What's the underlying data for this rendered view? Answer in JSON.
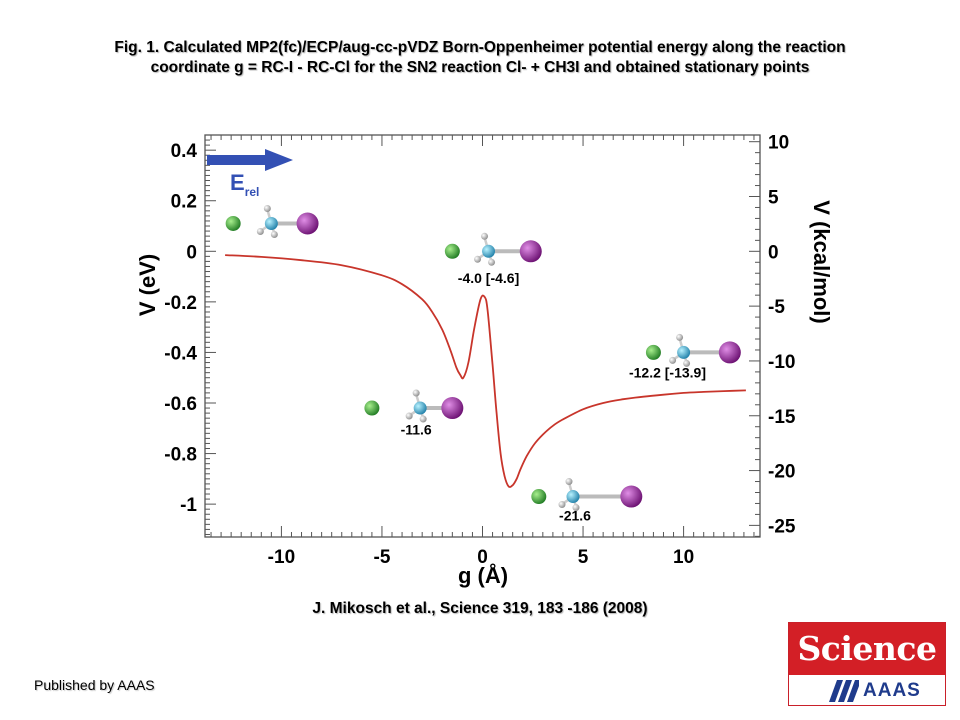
{
  "header": {
    "title_line1": "Fig. 1. Calculated MP2(fc)/ECP/aug-cc-pVDZ Born-Oppenheimer potential energy along the reaction",
    "title_line2": "coordinate g = RC-I - RC-Cl for the SN2 reaction Cl- + CH3I and obtained stationary points"
  },
  "citation": "J.  Mikosch et al.,  Science  319, 183 -186 (2008)",
  "publisher": "Published by AAAS",
  "logo": {
    "name": "Science",
    "sub": "AAAS"
  },
  "chart_data": {
    "type": "line",
    "xlabel": "g (Å)",
    "ylabel": "V (eV)",
    "y2label": "V (kcal/mol)",
    "xlim": [
      -13.8,
      13.8
    ],
    "ylim": [
      -1.13,
      0.46
    ],
    "y2lim": [
      -26.06,
      10.61
    ],
    "xticks": [
      -10,
      -5,
      0,
      5,
      10
    ],
    "xtick_labels": [
      "-10",
      "-5",
      "0",
      "5",
      "10"
    ],
    "yticks": [
      0.4,
      0.2,
      0,
      -0.2,
      -0.4,
      -0.6,
      -0.8,
      -1
    ],
    "ytick_labels": [
      "0.4",
      "0.2",
      "0",
      "-0.2",
      "-0.4",
      "-0.6",
      "-0.8",
      "-1"
    ],
    "y2ticks": [
      10,
      5,
      0,
      -5,
      -10,
      -15,
      -20,
      -25
    ],
    "y2tick_labels": [
      "10",
      "5",
      "0",
      "-5",
      "-10",
      "-15",
      "-20",
      "-25"
    ],
    "grid": false,
    "arrow_label": "E",
    "arrow_label_sub": "rel",
    "series": [
      {
        "color": "#c8352b",
        "x": [
          -12.8,
          -11,
          -9,
          -7,
          -5,
          -4,
          -3,
          -2.5,
          -2,
          -1.6,
          -1.3,
          -1.1,
          -0.95,
          -0.7,
          -0.4,
          -0.1,
          0.1,
          0.25,
          0.5,
          0.7,
          0.9,
          1.1,
          1.3,
          1.5,
          1.7,
          1.9,
          2.2,
          2.6,
          3,
          3.5,
          4,
          5,
          6,
          7,
          8,
          9,
          10,
          11,
          12,
          13.1
        ],
        "y": [
          -0.015,
          -0.022,
          -0.035,
          -0.055,
          -0.095,
          -0.13,
          -0.19,
          -0.24,
          -0.31,
          -0.39,
          -0.46,
          -0.49,
          -0.5,
          -0.44,
          -0.3,
          -0.19,
          -0.18,
          -0.23,
          -0.45,
          -0.64,
          -0.8,
          -0.89,
          -0.93,
          -0.925,
          -0.9,
          -0.86,
          -0.81,
          -0.76,
          -0.725,
          -0.69,
          -0.665,
          -0.625,
          -0.6,
          -0.585,
          -0.575,
          -0.567,
          -0.56,
          -0.556,
          -0.553,
          -0.55
        ]
      }
    ],
    "annotations": [
      {
        "label": "-4.0",
        "label2": "[-4.6]",
        "x": 0.3,
        "y": -0.125
      },
      {
        "label": "-12.2",
        "label2": "[-13.9]",
        "x": 9.2,
        "y": -0.5
      },
      {
        "label": "-11.6",
        "label2": "",
        "x": -3.3,
        "y": -0.725
      },
      {
        "label": "-21.6",
        "label2": "",
        "x": 4.6,
        "y": -1.065
      }
    ],
    "molecules": [
      {
        "name": "reactant",
        "cl": [
          -12.4,
          0.11
        ],
        "c": [
          -10.5,
          0.11
        ],
        "i": [
          -8.7,
          0.11
        ]
      },
      {
        "name": "transition-state",
        "cl": [
          -1.5,
          0.0
        ],
        "c": [
          0.3,
          0.0
        ],
        "i": [
          2.4,
          0.0
        ]
      },
      {
        "name": "pre-reaction-complex",
        "cl": [
          -5.5,
          -0.62
        ],
        "c": [
          -3.1,
          -0.62
        ],
        "i": [
          -1.5,
          -0.62
        ]
      },
      {
        "name": "post-reaction-complex",
        "cl": [
          2.8,
          -0.97
        ],
        "c": [
          4.5,
          -0.97
        ],
        "i": [
          7.4,
          -0.97
        ]
      },
      {
        "name": "products",
        "cl": [
          8.5,
          -0.4
        ],
        "c": [
          10.0,
          -0.4
        ],
        "i": [
          12.3,
          -0.4
        ]
      }
    ],
    "colors": {
      "cl": "#3aa63a",
      "c": "#2fb3d6",
      "i": "#9a2a9e",
      "h": "#eeeeee",
      "arrow": "#3350b4"
    }
  }
}
